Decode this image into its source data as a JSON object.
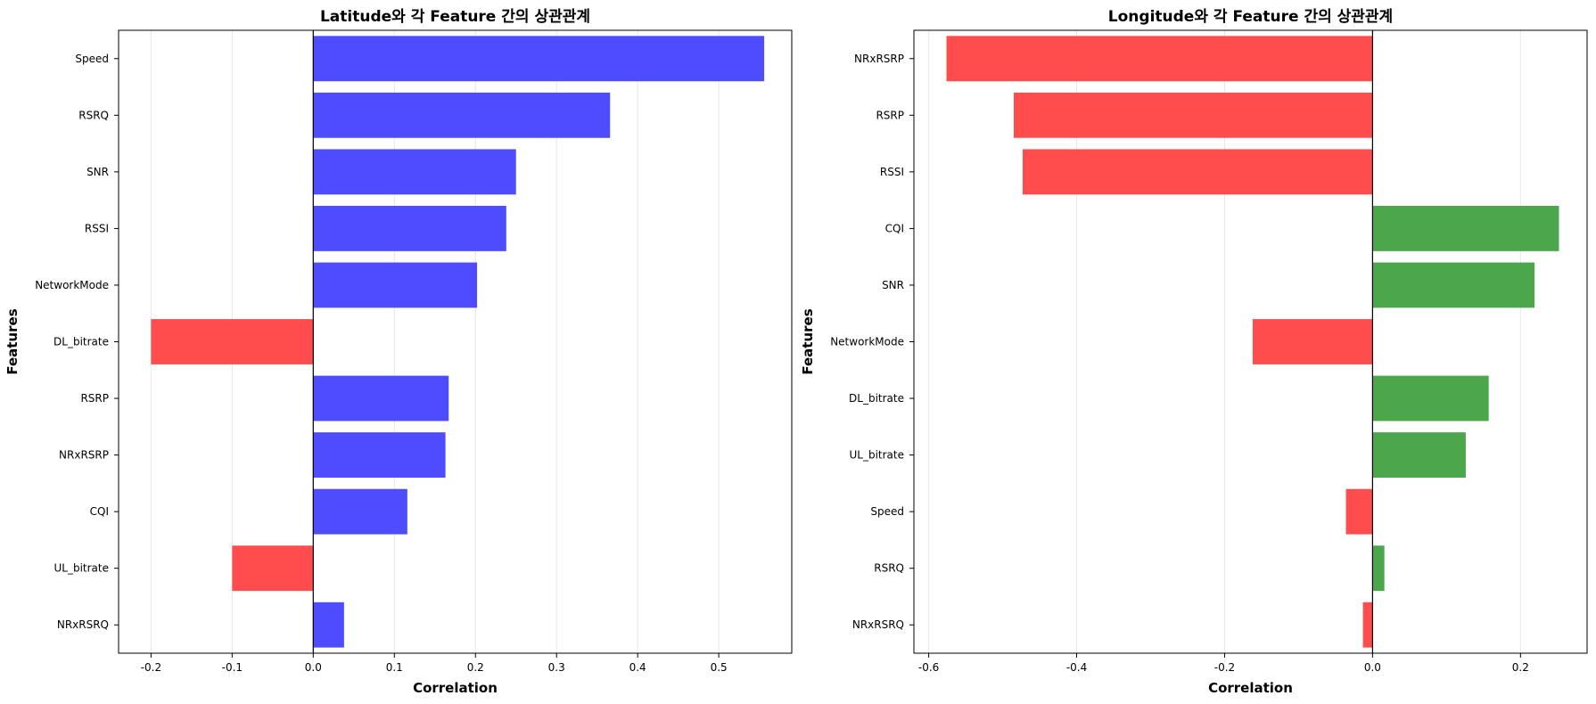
{
  "chart_data": [
    {
      "type": "bar",
      "orientation": "horizontal",
      "title": "Latitude와 각 Feature 간의 상관관계",
      "xlabel": "Correlation",
      "ylabel": "Features",
      "xlim": [
        -0.24,
        0.59
      ],
      "xticks": [
        -0.2,
        -0.1,
        0.0,
        0.1,
        0.2,
        0.3,
        0.4,
        0.5
      ],
      "xtick_labels": [
        "-0.2",
        "-0.1",
        "0.0",
        "0.1",
        "0.2",
        "0.3",
        "0.4",
        "0.5"
      ],
      "grid": "vertical",
      "colors": {
        "positive": "#4d4dff",
        "negative": "#ff4d4d"
      },
      "categories": [
        "NRxRSRQ",
        "UL_bitrate",
        "CQI",
        "NRxRSRP",
        "RSRP",
        "DL_bitrate",
        "NetworkMode",
        "RSSI",
        "SNR",
        "RSRQ",
        "Speed"
      ],
      "values": [
        0.038,
        -0.1,
        0.116,
        0.163,
        0.167,
        -0.2,
        0.202,
        0.238,
        0.25,
        0.366,
        0.556
      ]
    },
    {
      "type": "bar",
      "orientation": "horizontal",
      "title": "Longitude와 각 Feature 간의 상관관계",
      "xlabel": "Correlation",
      "ylabel": "Features",
      "xlim": [
        -0.62,
        0.29
      ],
      "xticks": [
        -0.6,
        -0.4,
        -0.2,
        0.0,
        0.2
      ],
      "xtick_labels": [
        "-0.6",
        "-0.4",
        "-0.2",
        "0.0",
        "0.2"
      ],
      "grid": "vertical",
      "colors": {
        "positive": "#4ca64c",
        "negative": "#ff4d4d"
      },
      "categories": [
        "NRxRSRQ",
        "RSRQ",
        "Speed",
        "UL_bitrate",
        "DL_bitrate",
        "NetworkMode",
        "SNR",
        "CQI",
        "RSSI",
        "RSRP",
        "NRxRSRP"
      ],
      "values": [
        -0.013,
        0.016,
        -0.036,
        0.126,
        0.157,
        -0.162,
        0.219,
        0.252,
        -0.473,
        -0.485,
        -0.576
      ]
    }
  ]
}
